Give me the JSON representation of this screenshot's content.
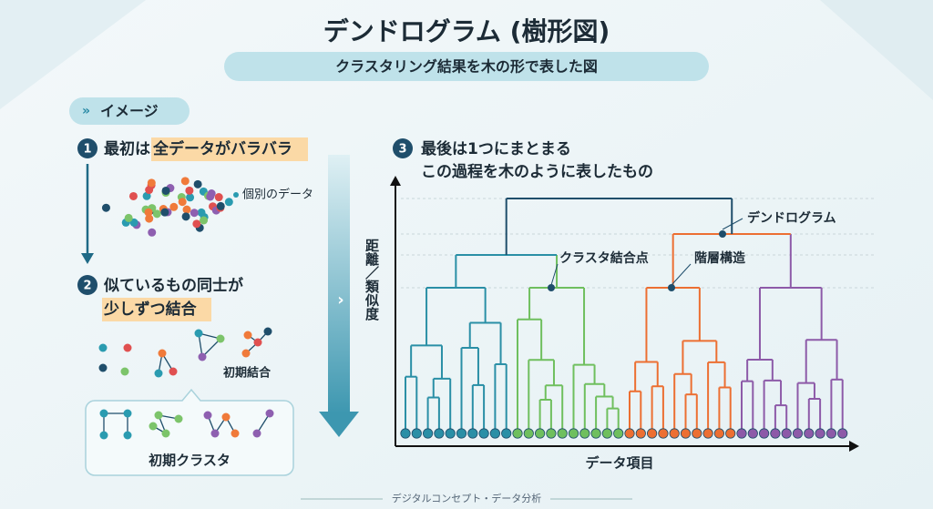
{
  "header": {
    "title": "デンドログラム (樹形図)",
    "subtitle": "クラスタリング結果を木の形で表した図"
  },
  "section_tag": "イメージ",
  "step1": {
    "number": "1",
    "lead": "最初は",
    "highlight": "全データがバラバラ",
    "annotation": "個別のデータ"
  },
  "step2": {
    "number": "2",
    "line1": "似ているもの同士が",
    "highlight": "少しずつ結合",
    "annotation": "初期結合",
    "box_label": "初期クラスタ"
  },
  "step3": {
    "number": "3",
    "line1": "最後は1つにまとまる",
    "line2": "この過程を木のように表したもの"
  },
  "dendrogram": {
    "y_axis_label": "距離／類似度",
    "x_axis_label": "データ項目",
    "callouts": [
      "デンドログラム",
      "クラスタ結合点",
      "階層構造"
    ]
  },
  "footer": "デジタルコンセプト・データ分析"
}
